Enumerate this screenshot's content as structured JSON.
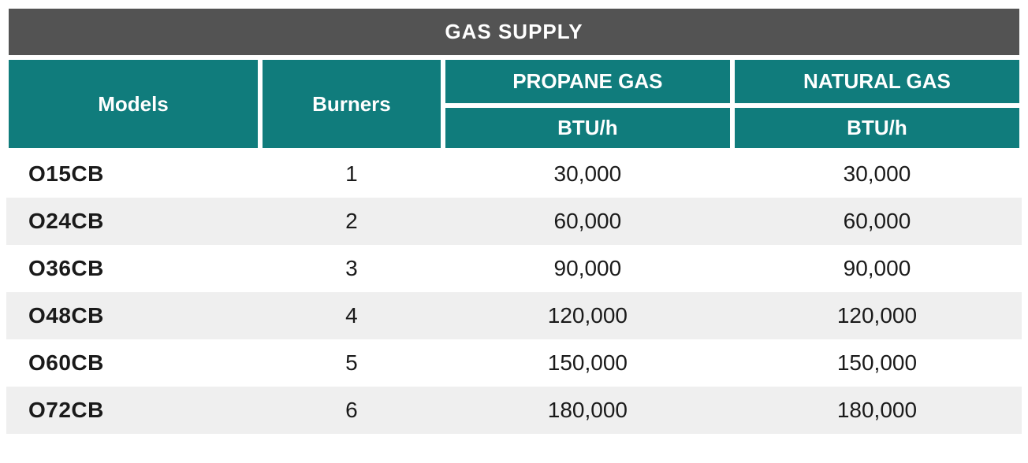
{
  "table": {
    "type": "table",
    "title": "GAS SUPPLY",
    "colors": {
      "title_bg": "#535353",
      "header_bg": "#107c7c",
      "header_text": "#ffffff",
      "row_odd_bg": "#ffffff",
      "row_even_bg": "#efefef",
      "cell_text": "#1a1a1a",
      "border": "#ffffff"
    },
    "typography": {
      "title_fontsize": 26,
      "header_fontsize": 26,
      "cell_fontsize": 28,
      "model_fontweight": 800,
      "header_fontweight": 700
    },
    "column_widths_pct": [
      25,
      18,
      28.5,
      28.5
    ],
    "headers": {
      "models": "Models",
      "burners": "Burners",
      "propane": "PROPANE GAS",
      "natural": "NATURAL GAS",
      "btu_unit": "BTU/h"
    },
    "rows": [
      {
        "model": "O15CB",
        "burners": "1",
        "propane_btu": "30,000",
        "natural_btu": "30,000"
      },
      {
        "model": "O24CB",
        "burners": "2",
        "propane_btu": "60,000",
        "natural_btu": "60,000"
      },
      {
        "model": "O36CB",
        "burners": "3",
        "propane_btu": "90,000",
        "natural_btu": "90,000"
      },
      {
        "model": "O48CB",
        "burners": "4",
        "propane_btu": "120,000",
        "natural_btu": "120,000"
      },
      {
        "model": "O60CB",
        "burners": "5",
        "propane_btu": "150,000",
        "natural_btu": "150,000"
      },
      {
        "model": "O72CB",
        "burners": "6",
        "propane_btu": "180,000",
        "natural_btu": "180,000"
      }
    ]
  }
}
